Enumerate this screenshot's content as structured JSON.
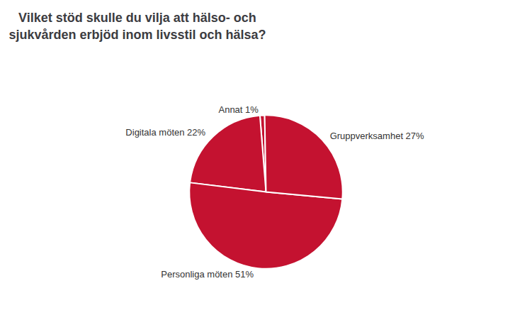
{
  "chart_data": {
    "type": "pie",
    "title": "Vilket stöd skulle du vilja att hälso- och\nsjukvården erbjöd inom livsstil och hälsa?",
    "categories": [
      "Annat 1%",
      "Digitala möten 22%",
      "Personliga möten 51%",
      "Gruppverksamhet 27%"
    ],
    "values": [
      1,
      22,
      51,
      27
    ],
    "color": "#c41230"
  }
}
